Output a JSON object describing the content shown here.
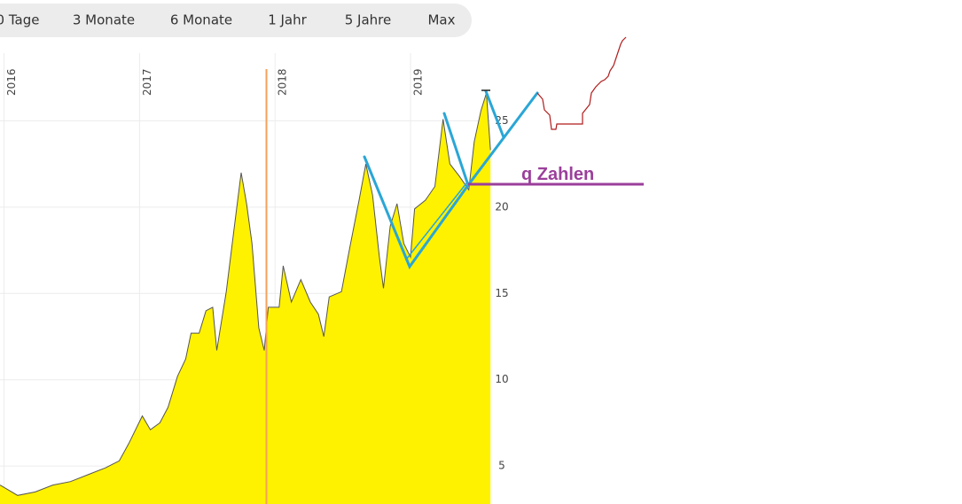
{
  "toolbar": {
    "buttons": [
      "0 Tage",
      "3 Monate",
      "6 Monate",
      "1 Jahr",
      "5 Jahre",
      "Max"
    ]
  },
  "chart_data": {
    "type": "area",
    "x": [
      2015.97,
      2016.1,
      2016.23,
      2016.36,
      2016.49,
      2016.62,
      2016.75,
      2016.85,
      2016.92,
      2017.02,
      2017.08,
      2017.15,
      2017.21,
      2017.28,
      2017.34,
      2017.38,
      2017.44,
      2017.49,
      2017.54,
      2017.57,
      2017.64,
      2017.7,
      2017.75,
      2017.79,
      2017.83,
      2017.88,
      2017.92,
      2017.95,
      2018.03,
      2018.06,
      2018.12,
      2018.19,
      2018.26,
      2018.32,
      2018.36,
      2018.4,
      2018.49,
      2018.55,
      2018.62,
      2018.67,
      2018.72,
      2018.77,
      2018.8,
      2018.85,
      2018.9,
      2018.95,
      2019.0,
      2019.03,
      2019.11,
      2019.18,
      2019.24,
      2019.29,
      2019.36,
      2019.43,
      2019.47,
      2019.52,
      2019.56,
      2019.59
    ],
    "values": [
      3.9,
      3.3,
      3.5,
      3.9,
      4.1,
      4.5,
      4.9,
      5.3,
      6.3,
      7.9,
      7.1,
      7.5,
      8.4,
      10.2,
      11.2,
      12.7,
      12.7,
      14.0,
      14.2,
      11.7,
      15.1,
      18.9,
      22.0,
      20.2,
      17.9,
      13.0,
      11.7,
      14.2,
      14.2,
      16.6,
      14.5,
      15.8,
      14.5,
      13.8,
      12.5,
      14.8,
      15.1,
      17.6,
      20.4,
      22.5,
      20.7,
      17.1,
      15.3,
      18.9,
      20.2,
      17.9,
      17.1,
      19.9,
      20.4,
      21.2,
      25.1,
      22.5,
      21.8,
      21.0,
      23.8,
      25.6,
      26.6,
      23.3
    ],
    "color": "#fff200",
    "line_color": "#555555",
    "xlim": [
      2015.97,
      2023.07
    ],
    "xticks": [
      2016,
      2017,
      2018,
      2019
    ],
    "ylim": [
      2.8,
      32
    ],
    "yticks": [
      5,
      10,
      15,
      20,
      25
    ],
    "grid": true,
    "annotations": [
      {
        "text": "q Zahlen"
      }
    ]
  }
}
